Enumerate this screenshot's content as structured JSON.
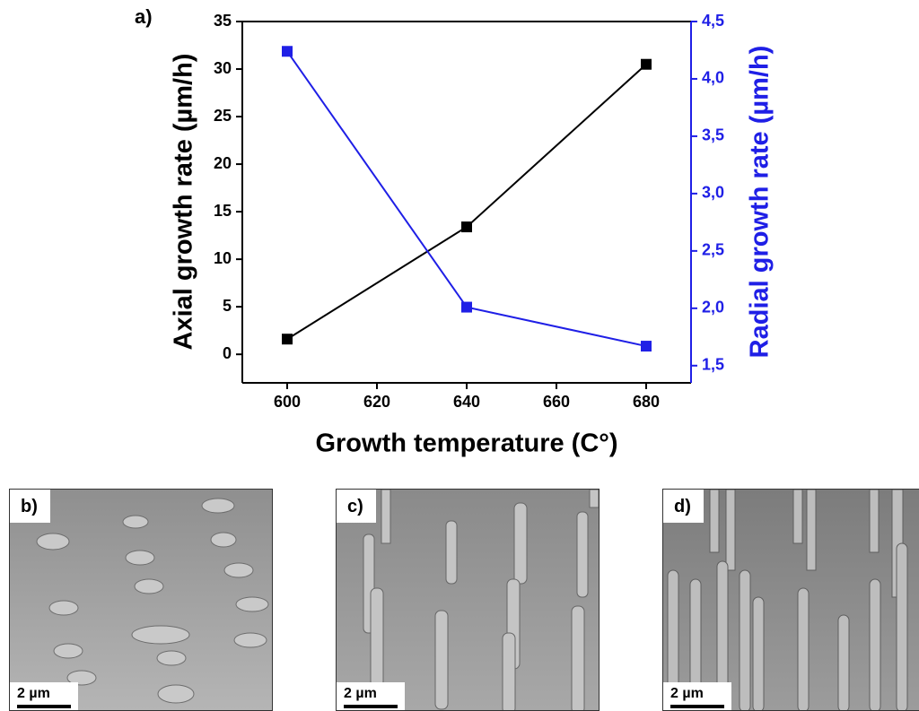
{
  "chart_data": {
    "type": "line",
    "panel_label": "a)",
    "xlabel": "Growth temperature (C°)",
    "ylabel": "Axial growth rate (µm/h)",
    "y2label": "Radial growth rate (µm/h)",
    "x": [
      600,
      640,
      680
    ],
    "series": [
      {
        "name": "Axial growth rate",
        "color": "#000000",
        "values": [
          1.6,
          13.4,
          30.5
        ]
      },
      {
        "name": "Radial growth rate",
        "color": "#1f1fe6",
        "axis": "y2",
        "values": [
          4.24,
          2.01,
          1.67
        ]
      }
    ],
    "xlim": [
      590,
      690
    ],
    "xticks": [
      600,
      620,
      640,
      660,
      680
    ],
    "ylim": [
      -3,
      35
    ],
    "yticks": [
      0,
      5,
      10,
      15,
      20,
      25,
      30,
      35
    ],
    "y2lim": [
      1.35,
      4.5
    ],
    "y2ticks": [
      {
        "value": 1.5,
        "label": "1,5"
      },
      {
        "value": 2.0,
        "label": "2,0"
      },
      {
        "value": 2.5,
        "label": "2,5"
      },
      {
        "value": 3.0,
        "label": "3,0"
      },
      {
        "value": 3.5,
        "label": "3,5"
      },
      {
        "value": 4.0,
        "label": "4,0"
      },
      {
        "value": 4.5,
        "label": "4,5"
      }
    ],
    "y2color": "#1f1fe6"
  },
  "panels": [
    {
      "label": "b)",
      "scale": "2 µm"
    },
    {
      "label": "c)",
      "scale": "2 µm"
    },
    {
      "label": "d)",
      "scale": "2 µm"
    }
  ]
}
